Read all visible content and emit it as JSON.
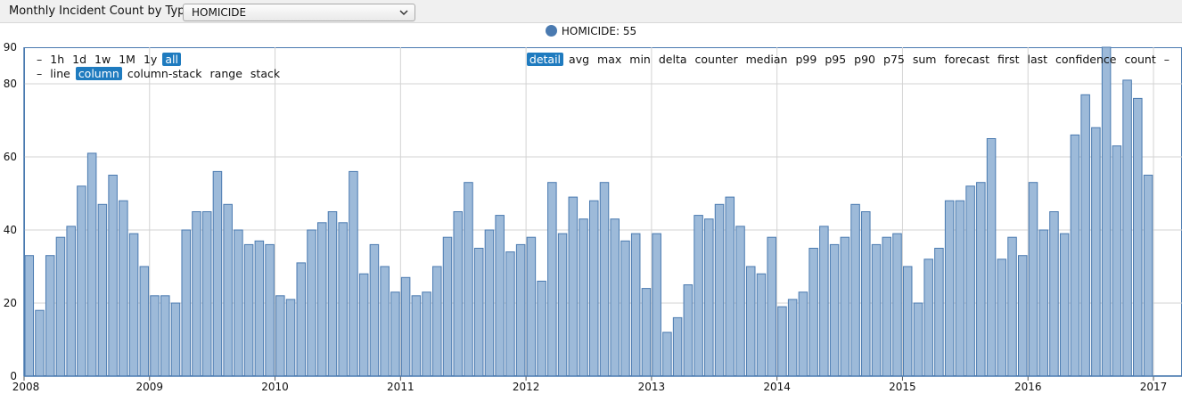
{
  "header": {
    "title": "Monthly Incident Count by Type",
    "selected_type": "HOMICIDE"
  },
  "legend": {
    "label": "HOMICIDE: 55",
    "color": "#4a7ab0"
  },
  "controls": {
    "periods": [
      "–",
      "1h",
      "1d",
      "1w",
      "1M",
      "1y",
      "all"
    ],
    "period_active": "all",
    "modes": [
      "–",
      "line",
      "column",
      "column-stack",
      "range",
      "stack"
    ],
    "mode_active": "column",
    "stats": [
      "detail",
      "avg",
      "max",
      "min",
      "delta",
      "counter",
      "median",
      "p99",
      "p95",
      "p90",
      "p75",
      "sum",
      "forecast",
      "first",
      "last",
      "confidence",
      "count",
      "–"
    ],
    "stat_active": "detail"
  },
  "chart_data": {
    "type": "bar",
    "title": "",
    "xlabel": "",
    "ylabel": "",
    "ylim": [
      0,
      90
    ],
    "y_ticks": [
      0,
      20,
      40,
      60,
      80,
      90
    ],
    "x_ticks": [
      "2008",
      "2009",
      "2010",
      "2011",
      "2012",
      "2013",
      "2014",
      "2015",
      "2016",
      "2017"
    ],
    "grid": true,
    "bar_color": "#9dbad9",
    "bar_edge_color": "#4a7ab0",
    "series": [
      {
        "name": "HOMICIDE",
        "x_start": "2008-01",
        "interval": "month",
        "values": [
          33,
          18,
          33,
          38,
          41,
          52,
          61,
          47,
          55,
          48,
          39,
          30,
          22,
          22,
          20,
          40,
          45,
          45,
          56,
          47,
          40,
          36,
          37,
          36,
          22,
          21,
          31,
          40,
          42,
          45,
          42,
          56,
          28,
          36,
          30,
          23,
          27,
          22,
          23,
          30,
          38,
          45,
          53,
          35,
          40,
          44,
          34,
          36,
          38,
          26,
          53,
          39,
          49,
          43,
          48,
          53,
          43,
          37,
          39,
          24,
          39,
          12,
          16,
          25,
          44,
          43,
          47,
          49,
          41,
          30,
          28,
          38,
          19,
          21,
          23,
          35,
          41,
          36,
          38,
          47,
          45,
          36,
          38,
          39,
          30,
          20,
          32,
          35,
          48,
          48,
          52,
          53,
          65,
          32,
          38,
          33,
          53,
          40,
          45,
          39,
          66,
          77,
          68,
          90,
          63,
          81,
          76,
          55
        ]
      }
    ]
  }
}
